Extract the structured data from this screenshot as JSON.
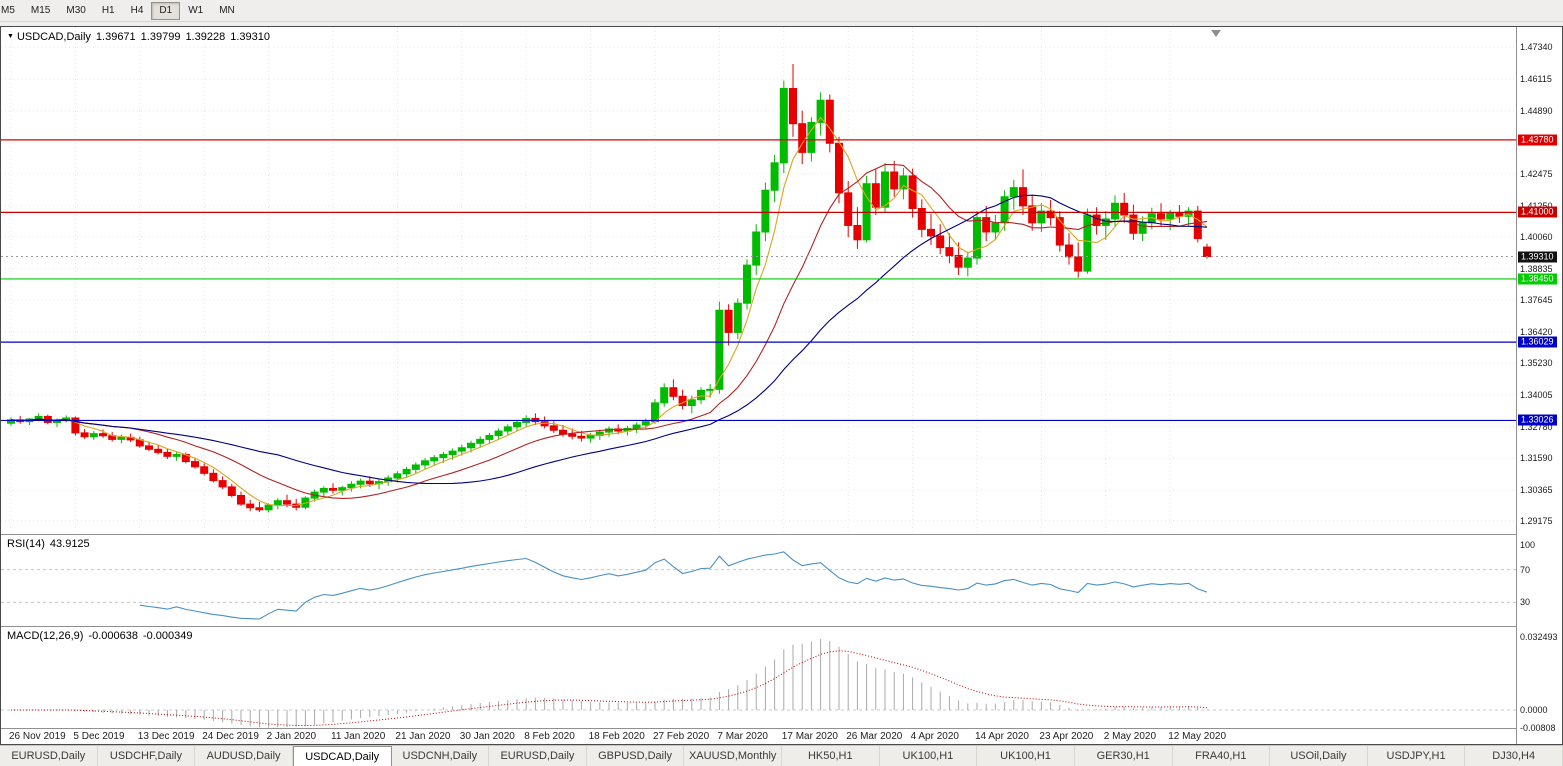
{
  "toolbar": {
    "timeframes": [
      {
        "label": "M5",
        "active": false
      },
      {
        "label": "M15",
        "active": false
      },
      {
        "label": "M30",
        "active": false
      },
      {
        "label": "H1",
        "active": false
      },
      {
        "label": "H4",
        "active": false
      },
      {
        "label": "D1",
        "active": true
      },
      {
        "label": "W1",
        "active": false
      },
      {
        "label": "MN",
        "active": false
      }
    ]
  },
  "header": {
    "symbol": "USDCAD,Daily",
    "open": "1.39671",
    "high": "1.39799",
    "low": "1.39228",
    "close": "1.39310"
  },
  "price_axis": {
    "gridlines": [
      "1.47340",
      "1.46115",
      "1.44890",
      "1.42475",
      "1.41250",
      "1.40060",
      "1.38835",
      "1.37645",
      "1.36420",
      "1.35230",
      "1.34005",
      "1.32780",
      "1.31590",
      "1.30365",
      "1.29175"
    ],
    "current": {
      "value": 1.3931,
      "label": "1.39310",
      "bg": "#111111",
      "fg": "#FFFFFF"
    }
  },
  "hlines": [
    {
      "value": 1.4378,
      "label": "1.43780",
      "color": "#E00000",
      "text": "#FFFFFF"
    },
    {
      "value": 1.41,
      "label": "1.41000",
      "color": "#C80000",
      "text": "#FFFFFF"
    },
    {
      "value": 1.3845,
      "label": "1.38450",
      "color": "#00CC00",
      "text": "#FFFFFF"
    },
    {
      "value": 1.36029,
      "label": "1.36029",
      "color": "#0000C8",
      "text": "#FFFFFF"
    },
    {
      "value": 1.33026,
      "label": "1.33026",
      "color": "#0000C8",
      "text": "#FFFFFF"
    }
  ],
  "chart_data": {
    "type": "candlestick",
    "symbol": "USDCAD",
    "timeframe": "Daily",
    "price_range": [
      1.29175,
      1.4734
    ],
    "x_labels": [
      {
        "text": "26 Nov 2019",
        "index": 0
      },
      {
        "text": "5 Dec 2019",
        "index": 7
      },
      {
        "text": "13 Dec 2019",
        "index": 14
      },
      {
        "text": "24 Dec 2019",
        "index": 21
      },
      {
        "text": "2 Jan 2020",
        "index": 28
      },
      {
        "text": "11 Jan 2020",
        "index": 35
      },
      {
        "text": "21 Jan 2020",
        "index": 42
      },
      {
        "text": "30 Jan 2020",
        "index": 49
      },
      {
        "text": "8 Feb 2020",
        "index": 56
      },
      {
        "text": "18 Feb 2020",
        "index": 63
      },
      {
        "text": "27 Feb 2020",
        "index": 70
      },
      {
        "text": "7 Mar 2020",
        "index": 77
      },
      {
        "text": "17 Mar 2020",
        "index": 84
      },
      {
        "text": "26 Mar 2020",
        "index": 91
      },
      {
        "text": "4 Apr 2020",
        "index": 98
      },
      {
        "text": "14 Apr 2020",
        "index": 105
      },
      {
        "text": "23 Apr 2020",
        "index": 112
      },
      {
        "text": "2 May 2020",
        "index": 119
      },
      {
        "text": "12 May 2020",
        "index": 126
      }
    ],
    "moving_averages": [
      {
        "period": 5,
        "color": "#DAA520"
      },
      {
        "period": 14,
        "color": "#B22222"
      },
      {
        "period": 30,
        "color": "#000080"
      }
    ],
    "candles": [
      [
        1.3292,
        1.3315,
        1.3282,
        1.3305
      ],
      [
        1.3305,
        1.332,
        1.329,
        1.3298
      ],
      [
        1.3298,
        1.3312,
        1.3285,
        1.3308
      ],
      [
        1.3308,
        1.333,
        1.33,
        1.3318
      ],
      [
        1.3318,
        1.3325,
        1.3288,
        1.3295
      ],
      [
        1.3295,
        1.331,
        1.3278,
        1.3302
      ],
      [
        1.3302,
        1.3322,
        1.3295,
        1.3312
      ],
      [
        1.3312,
        1.3318,
        1.3245,
        1.3255
      ],
      [
        1.3255,
        1.327,
        1.3232,
        1.324
      ],
      [
        1.324,
        1.3262,
        1.3228,
        1.3252
      ],
      [
        1.3252,
        1.3268,
        1.3236,
        1.3244
      ],
      [
        1.3244,
        1.3258,
        1.3222,
        1.323
      ],
      [
        1.323,
        1.3248,
        1.3215,
        1.3238
      ],
      [
        1.3238,
        1.3252,
        1.322,
        1.3228
      ],
      [
        1.3228,
        1.324,
        1.3198,
        1.3205
      ],
      [
        1.3205,
        1.3222,
        1.3185,
        1.3192
      ],
      [
        1.3192,
        1.321,
        1.3172,
        1.318
      ],
      [
        1.318,
        1.3195,
        1.3155,
        1.3165
      ],
      [
        1.3165,
        1.3185,
        1.3148,
        1.3172
      ],
      [
        1.3172,
        1.318,
        1.3138,
        1.3145
      ],
      [
        1.3145,
        1.316,
        1.3118,
        1.3125
      ],
      [
        1.3125,
        1.3138,
        1.3092,
        1.31
      ],
      [
        1.31,
        1.3115,
        1.3065,
        1.3072
      ],
      [
        1.3072,
        1.3088,
        1.304,
        1.3048
      ],
      [
        1.3048,
        1.306,
        1.3008,
        1.3015
      ],
      [
        1.3015,
        1.303,
        1.2975,
        1.2982
      ],
      [
        1.2982,
        1.2998,
        1.2955,
        1.2968
      ],
      [
        1.2968,
        1.299,
        1.2952,
        1.296
      ],
      [
        1.296,
        1.2985,
        1.295,
        1.2978
      ],
      [
        1.2978,
        1.3005,
        1.2962,
        1.2995
      ],
      [
        1.2995,
        1.3018,
        1.297,
        1.2982
      ],
      [
        1.2982,
        1.3002,
        1.2958,
        1.297
      ],
      [
        1.297,
        1.3012,
        1.2962,
        1.3005
      ],
      [
        1.3005,
        1.3038,
        1.2992,
        1.3028
      ],
      [
        1.3028,
        1.305,
        1.301,
        1.3042
      ],
      [
        1.3042,
        1.3062,
        1.3022,
        1.3035
      ],
      [
        1.3035,
        1.3052,
        1.3015,
        1.3045
      ],
      [
        1.3045,
        1.307,
        1.303,
        1.3058
      ],
      [
        1.3058,
        1.308,
        1.3042,
        1.307
      ],
      [
        1.307,
        1.3088,
        1.3048,
        1.306
      ],
      [
        1.306,
        1.3078,
        1.304,
        1.3068
      ],
      [
        1.3068,
        1.3092,
        1.3052,
        1.3082
      ],
      [
        1.3082,
        1.3108,
        1.3065,
        1.3098
      ],
      [
        1.3098,
        1.3125,
        1.3082,
        1.3115
      ],
      [
        1.3115,
        1.3142,
        1.3098,
        1.3132
      ],
      [
        1.3132,
        1.3158,
        1.3115,
        1.3148
      ],
      [
        1.3148,
        1.317,
        1.3128,
        1.316
      ],
      [
        1.316,
        1.3182,
        1.314,
        1.3172
      ],
      [
        1.3172,
        1.3195,
        1.3152,
        1.3185
      ],
      [
        1.3185,
        1.321,
        1.3168,
        1.3198
      ],
      [
        1.3198,
        1.3225,
        1.318,
        1.3215
      ],
      [
        1.3215,
        1.3242,
        1.3198,
        1.323
      ],
      [
        1.323,
        1.3255,
        1.3212,
        1.3245
      ],
      [
        1.3245,
        1.3272,
        1.3228,
        1.3262
      ],
      [
        1.3262,
        1.3288,
        1.3245,
        1.3278
      ],
      [
        1.3278,
        1.3305,
        1.326,
        1.3295
      ],
      [
        1.3295,
        1.3322,
        1.3278,
        1.331
      ],
      [
        1.331,
        1.333,
        1.3285,
        1.3298
      ],
      [
        1.3298,
        1.3318,
        1.3272,
        1.3282
      ],
      [
        1.3282,
        1.33,
        1.3255,
        1.3265
      ],
      [
        1.3265,
        1.3285,
        1.324,
        1.325
      ],
      [
        1.325,
        1.3272,
        1.323,
        1.3242
      ],
      [
        1.3242,
        1.3262,
        1.3222,
        1.3235
      ],
      [
        1.3235,
        1.3255,
        1.3218,
        1.3245
      ],
      [
        1.3245,
        1.3268,
        1.3228,
        1.3258
      ],
      [
        1.3258,
        1.328,
        1.324,
        1.327
      ],
      [
        1.327,
        1.3288,
        1.325,
        1.3262
      ],
      [
        1.3262,
        1.3282,
        1.3245,
        1.3272
      ],
      [
        1.3272,
        1.3295,
        1.3255,
        1.3285
      ],
      [
        1.3285,
        1.331,
        1.3268,
        1.3298
      ],
      [
        1.3298,
        1.3385,
        1.329,
        1.337
      ],
      [
        1.337,
        1.3445,
        1.3355,
        1.3428
      ],
      [
        1.3428,
        1.346,
        1.338,
        1.3395
      ],
      [
        1.3395,
        1.342,
        1.3345,
        1.336
      ],
      [
        1.336,
        1.3398,
        1.333,
        1.3382
      ],
      [
        1.3382,
        1.343,
        1.3365,
        1.3418
      ],
      [
        1.3418,
        1.3442,
        1.339,
        1.3422
      ],
      [
        1.3422,
        1.3758,
        1.3405,
        1.3725
      ],
      [
        1.3725,
        1.3748,
        1.359,
        1.364
      ],
      [
        1.364,
        1.377,
        1.3615,
        1.3752
      ],
      [
        1.3752,
        1.392,
        1.3728,
        1.3898
      ],
      [
        1.3898,
        1.4055,
        1.386,
        1.4025
      ],
      [
        1.4025,
        1.4215,
        1.399,
        1.4185
      ],
      [
        1.4185,
        1.432,
        1.414,
        1.429
      ],
      [
        1.429,
        1.4605,
        1.425,
        1.4575
      ],
      [
        1.4575,
        1.4669,
        1.439,
        1.444
      ],
      [
        1.444,
        1.449,
        1.4285,
        1.433
      ],
      [
        1.433,
        1.4465,
        1.4295,
        1.4445
      ],
      [
        1.4445,
        1.456,
        1.4395,
        1.453
      ],
      [
        1.453,
        1.4552,
        1.433,
        1.4365
      ],
      [
        1.4365,
        1.439,
        1.4135,
        1.4175
      ],
      [
        1.4175,
        1.422,
        1.4005,
        1.405
      ],
      [
        1.405,
        1.412,
        1.396,
        1.3995
      ],
      [
        1.3995,
        1.424,
        1.3985,
        1.421
      ],
      [
        1.421,
        1.4265,
        1.409,
        1.412
      ],
      [
        1.412,
        1.429,
        1.41,
        1.4255
      ],
      [
        1.4255,
        1.4298,
        1.416,
        1.419
      ],
      [
        1.419,
        1.427,
        1.415,
        1.424
      ],
      [
        1.424,
        1.4268,
        1.408,
        1.4115
      ],
      [
        1.4115,
        1.415,
        1.4005,
        1.4035
      ],
      [
        1.4035,
        1.4095,
        1.3975,
        1.401
      ],
      [
        1.401,
        1.4055,
        1.394,
        1.3965
      ],
      [
        1.3965,
        1.402,
        1.3905,
        1.3935
      ],
      [
        1.3935,
        1.3985,
        1.386,
        1.389
      ],
      [
        1.389,
        1.395,
        1.3855,
        1.3925
      ],
      [
        1.3925,
        1.4105,
        1.39,
        1.408
      ],
      [
        1.408,
        1.4125,
        1.399,
        1.4025
      ],
      [
        1.4025,
        1.409,
        1.3995,
        1.406
      ],
      [
        1.406,
        1.4185,
        1.403,
        1.416
      ],
      [
        1.416,
        1.4225,
        1.411,
        1.4195
      ],
      [
        1.4195,
        1.4265,
        1.409,
        1.4125
      ],
      [
        1.4125,
        1.4165,
        1.403,
        1.406
      ],
      [
        1.406,
        1.4135,
        1.4025,
        1.4105
      ],
      [
        1.4105,
        1.4148,
        1.405,
        1.408
      ],
      [
        1.408,
        1.4105,
        1.395,
        1.3975
      ],
      [
        1.3975,
        1.402,
        1.39,
        1.393
      ],
      [
        1.393,
        1.3985,
        1.385,
        1.3875
      ],
      [
        1.3875,
        1.4115,
        1.3865,
        1.409
      ],
      [
        1.409,
        1.412,
        1.4015,
        1.405
      ],
      [
        1.405,
        1.4105,
        1.3995,
        1.4075
      ],
      [
        1.4075,
        1.4165,
        1.4045,
        1.4135
      ],
      [
        1.4135,
        1.4175,
        1.406,
        1.409
      ],
      [
        1.409,
        1.413,
        1.3995,
        1.402
      ],
      [
        1.402,
        1.4085,
        1.399,
        1.406
      ],
      [
        1.406,
        1.4118,
        1.4035,
        1.4095
      ],
      [
        1.4095,
        1.4135,
        1.405,
        1.4075
      ],
      [
        1.4075,
        1.411,
        1.4032,
        1.4098
      ],
      [
        1.4098,
        1.4128,
        1.406,
        1.4085
      ],
      [
        1.4085,
        1.412,
        1.4048,
        1.4105
      ],
      [
        1.4105,
        1.4125,
        1.3985,
        1.4
      ],
      [
        1.39671,
        1.39799,
        1.39228,
        1.3931
      ]
    ]
  },
  "indicators": {
    "rsi": {
      "name": "RSI(14)",
      "value": "43.9125",
      "period": 14,
      "levels": [
        "100",
        "70",
        "30"
      ],
      "color": "#4A90C2"
    },
    "macd": {
      "name": "MACD(12,26,9)",
      "value_main": "-0.000638",
      "value_signal": "-0.000349",
      "fast": 12,
      "slow": 26,
      "signal": 9,
      "axis_labels": [
        "0.032493",
        "0.0000",
        "-0.00808"
      ],
      "histogram_color": "#A9A9A9",
      "signal_color": "#C00000"
    }
  },
  "tabs": [
    {
      "label": "EURUSD,Daily",
      "active": false
    },
    {
      "label": "USDCHF,Daily",
      "active": false
    },
    {
      "label": "AUDUSD,Daily",
      "active": false
    },
    {
      "label": "USDCAD,Daily",
      "active": true
    },
    {
      "label": "USDCNH,Daily",
      "active": false
    },
    {
      "label": "EURUSD,Daily",
      "active": false
    },
    {
      "label": "GBPUSD,Daily",
      "active": false
    },
    {
      "label": "XAUUSD,Monthly",
      "active": false
    },
    {
      "label": "HK50,H1",
      "active": false
    },
    {
      "label": "UK100,H1",
      "active": false
    },
    {
      "label": "UK100,H1",
      "active": false
    },
    {
      "label": "GER30,H1",
      "active": false
    },
    {
      "label": "FRA40,H1",
      "active": false
    },
    {
      "label": "USOil,Daily",
      "active": false
    },
    {
      "label": "USDJPY,H1",
      "active": false
    },
    {
      "label": "DJ30,H4",
      "active": false
    }
  ],
  "colors": {
    "up": "#00BB00",
    "down": "#E80000",
    "grid": "#E4E4E4",
    "background": "#FFFFFF"
  }
}
